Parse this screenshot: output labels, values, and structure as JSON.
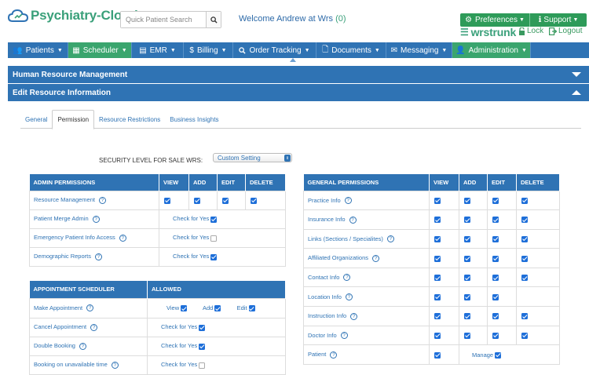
{
  "app": {
    "logo_text": "Psychiatry-Cloud"
  },
  "search": {
    "placeholder": "Quick Patient Search"
  },
  "welcome": {
    "text": "Welcome Andrew at Wrs",
    "count": "(0)"
  },
  "topright": {
    "preferences": "Preferences",
    "support": "Support",
    "username": "wrstrunk",
    "lock": "Lock",
    "logout": "Logout"
  },
  "nav": [
    {
      "label": "Patients",
      "icon": "users-icon"
    },
    {
      "label": "Scheduler",
      "icon": "calendar-icon"
    },
    {
      "label": "EMR",
      "icon": "emr-icon"
    },
    {
      "label": "Billing",
      "icon": "dollar-icon"
    },
    {
      "label": "Order Tracking",
      "icon": "search-icon"
    },
    {
      "label": "Documents",
      "icon": "document-icon"
    },
    {
      "label": "Messaging",
      "icon": "envelope-icon"
    },
    {
      "label": "Administration",
      "icon": "user-icon"
    }
  ],
  "sections": {
    "hrm": "Human Resource Management",
    "edit": "Edit Resource Information"
  },
  "tabs": [
    "General",
    "Permission",
    "Resource Restrictions",
    "Business Insights"
  ],
  "security": {
    "label": "SECURITY LEVEL FOR SALE WRS:",
    "value": "Custom Setting"
  },
  "admin": {
    "headers": [
      "ADMIN PERMISSIONS",
      "VIEW",
      "ADD",
      "EDIT",
      "DELETE"
    ],
    "check_label": "Check for Yes",
    "rows": [
      {
        "label": "Resource Management",
        "view": true,
        "add": true,
        "edit": true,
        "delete": true
      },
      {
        "label": "Patient Merge Admin",
        "yes": true
      },
      {
        "label": "Emergency Patient Info Access",
        "yes": false
      },
      {
        "label": "Demographic Reports",
        "yes": true
      }
    ]
  },
  "appt": {
    "headers": [
      "APPOINTMENT SCHEDULER",
      "ALLOWED"
    ],
    "check_label": "Check for Yes",
    "make": {
      "label": "Make Appointment",
      "view": "View",
      "add": "Add",
      "edit": "Edit"
    },
    "rows": [
      {
        "label": "Cancel Appointment",
        "yes": true
      },
      {
        "label": "Double Booking",
        "yes": true
      },
      {
        "label": "Booking on unavailable time",
        "yes": false
      }
    ]
  },
  "general": {
    "headers": [
      "GENERAL PERMISSIONS",
      "VIEW",
      "ADD",
      "EDIT",
      "DELETE"
    ],
    "rows": [
      {
        "label": "Practice Info",
        "view": true,
        "add": true,
        "edit": true,
        "delete": true
      },
      {
        "label": "Insurance Info",
        "view": true,
        "add": true,
        "edit": true,
        "delete": true
      },
      {
        "label": "Links (Sections / Specialites)",
        "view": true,
        "add": true,
        "edit": true,
        "delete": true
      },
      {
        "label": "Affiliated Organizations",
        "view": true,
        "add": true,
        "edit": true,
        "delete": true
      },
      {
        "label": "Contact Info",
        "view": true,
        "add": true,
        "edit": true,
        "delete": true
      },
      {
        "label": "Location Info",
        "view": true,
        "add": true,
        "edit": true
      },
      {
        "label": "Instruction Info",
        "view": true,
        "add": true,
        "edit": true,
        "delete": true
      },
      {
        "label": "Doctor Info",
        "view": true,
        "add": true,
        "edit": true,
        "delete": true
      }
    ],
    "patient": {
      "label": "Patient",
      "view": true,
      "manage_label": "Manage",
      "manage": true
    }
  }
}
